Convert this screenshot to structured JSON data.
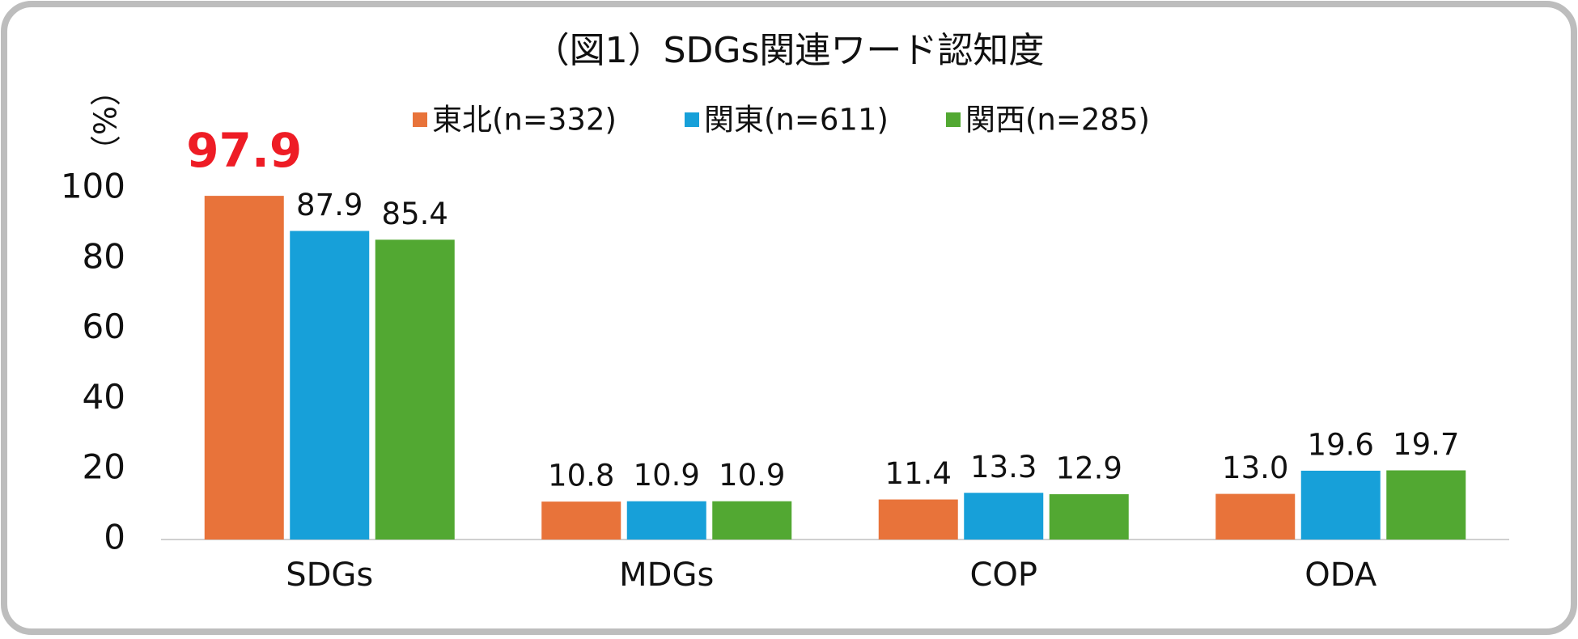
{
  "chart_data": {
    "type": "bar",
    "title": "（図1）SDGs関連ワード認知度",
    "y_label": "（%）",
    "categories": [
      "SDGs",
      "MDGs",
      "COP",
      "ODA"
    ],
    "series": [
      {
        "name": "東北(n=332)",
        "color": "#e8733a",
        "values": [
          97.9,
          10.8,
          11.4,
          13.0
        ],
        "value_labels": [
          "97.9",
          "10.8",
          "11.4",
          "13.0"
        ]
      },
      {
        "name": "関東(n=611)",
        "color": "#17a0d9",
        "values": [
          87.9,
          10.9,
          13.3,
          19.6
        ],
        "value_labels": [
          "87.9",
          "10.9",
          "13.3",
          "19.6"
        ]
      },
      {
        "name": "関西(n=285)",
        "color": "#52a832",
        "values": [
          85.4,
          10.9,
          12.9,
          19.7
        ],
        "value_labels": [
          "85.4",
          "10.9",
          "12.9",
          "19.7"
        ]
      }
    ],
    "highlight": {
      "series": 0,
      "index": 0,
      "color": "#ee1c25"
    },
    "ylim": [
      0,
      100
    ],
    "yticks": [
      0,
      20,
      40,
      60,
      80,
      100
    ],
    "grid": false,
    "legend": "top"
  }
}
